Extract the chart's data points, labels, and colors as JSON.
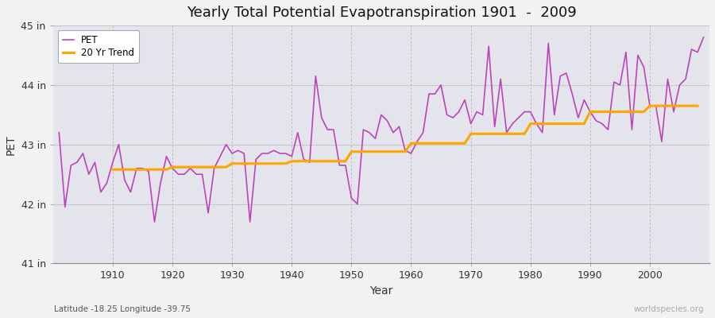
{
  "title": "Yearly Total Potential Evapotranspiration 1901  -  2009",
  "xlabel": "Year",
  "ylabel": "PET",
  "start_year": 1901,
  "end_year": 2009,
  "lat_lon_label": "Latitude -18.25 Longitude -39.75",
  "watermark": "worldspecies.org",
  "ylim": [
    41.0,
    45.0
  ],
  "yticks": [
    41,
    42,
    43,
    44,
    45
  ],
  "ytick_labels": [
    "41 in",
    "42 in",
    "43 in",
    "44 in",
    "45 in"
  ],
  "pet_color": "#BB44BB",
  "trend_color": "#FFA500",
  "fig_bg_color": "#F0F0F0",
  "plot_bg_color": "#E0E0E8",
  "grid_color_x": "#AAAAAA",
  "grid_color_y": "#BBBBBB",
  "pet_values": [
    43.2,
    41.95,
    42.65,
    42.7,
    42.85,
    42.5,
    42.7,
    42.2,
    42.35,
    42.7,
    43.0,
    42.4,
    42.2,
    42.6,
    42.6,
    42.55,
    41.7,
    42.35,
    42.8,
    42.6,
    42.5,
    42.5,
    42.6,
    42.5,
    42.5,
    41.85,
    42.6,
    42.8,
    43.0,
    42.85,
    42.9,
    42.85,
    41.7,
    42.75,
    42.85,
    42.85,
    42.9,
    42.85,
    42.85,
    42.8,
    43.2,
    42.75,
    42.7,
    44.15,
    43.45,
    43.25,
    43.25,
    42.65,
    42.65,
    42.1,
    42.0,
    43.25,
    43.2,
    43.1,
    43.5,
    43.4,
    43.2,
    43.3,
    42.9,
    42.85,
    43.05,
    43.2,
    43.85,
    43.85,
    44.0,
    43.5,
    43.45,
    43.55,
    43.75,
    43.35,
    43.55,
    43.5,
    44.65,
    43.3,
    44.1,
    43.2,
    43.35,
    43.45,
    43.55,
    43.55,
    43.35,
    43.2,
    44.7,
    43.5,
    44.15,
    44.2,
    43.85,
    43.45,
    43.75,
    43.55,
    43.4,
    43.35,
    43.25,
    44.05,
    44.0,
    44.55,
    43.25,
    44.5,
    44.3,
    43.65,
    43.65,
    43.05,
    44.1,
    43.55,
    44.0,
    44.1,
    44.6,
    44.55,
    44.8
  ],
  "trend_values": [
    null,
    null,
    null,
    null,
    null,
    null,
    null,
    null,
    null,
    42.58,
    42.58,
    42.58,
    42.58,
    42.58,
    42.58,
    42.58,
    42.58,
    42.58,
    42.58,
    42.62,
    42.62,
    42.62,
    42.62,
    42.62,
    42.62,
    42.62,
    42.62,
    42.62,
    42.62,
    42.68,
    42.68,
    42.68,
    42.68,
    42.68,
    42.68,
    42.68,
    42.68,
    42.68,
    42.68,
    42.72,
    42.72,
    42.72,
    42.72,
    42.72,
    42.72,
    42.72,
    42.72,
    42.72,
    42.72,
    42.88,
    42.88,
    42.88,
    42.88,
    42.88,
    42.88,
    42.88,
    42.88,
    42.88,
    42.88,
    43.02,
    43.02,
    43.02,
    43.02,
    43.02,
    43.02,
    43.02,
    43.02,
    43.02,
    43.02,
    43.18,
    43.18,
    43.18,
    43.18,
    43.18,
    43.18,
    43.18,
    43.18,
    43.18,
    43.18,
    43.35,
    43.35,
    43.35,
    43.35,
    43.35,
    43.35,
    43.35,
    43.35,
    43.35,
    43.35,
    43.55,
    43.55,
    43.55,
    43.55,
    43.55,
    43.55,
    43.55,
    43.55,
    43.55,
    43.55,
    43.65,
    43.65,
    43.65,
    43.65,
    43.65,
    43.65,
    43.65,
    43.65,
    43.65
  ]
}
